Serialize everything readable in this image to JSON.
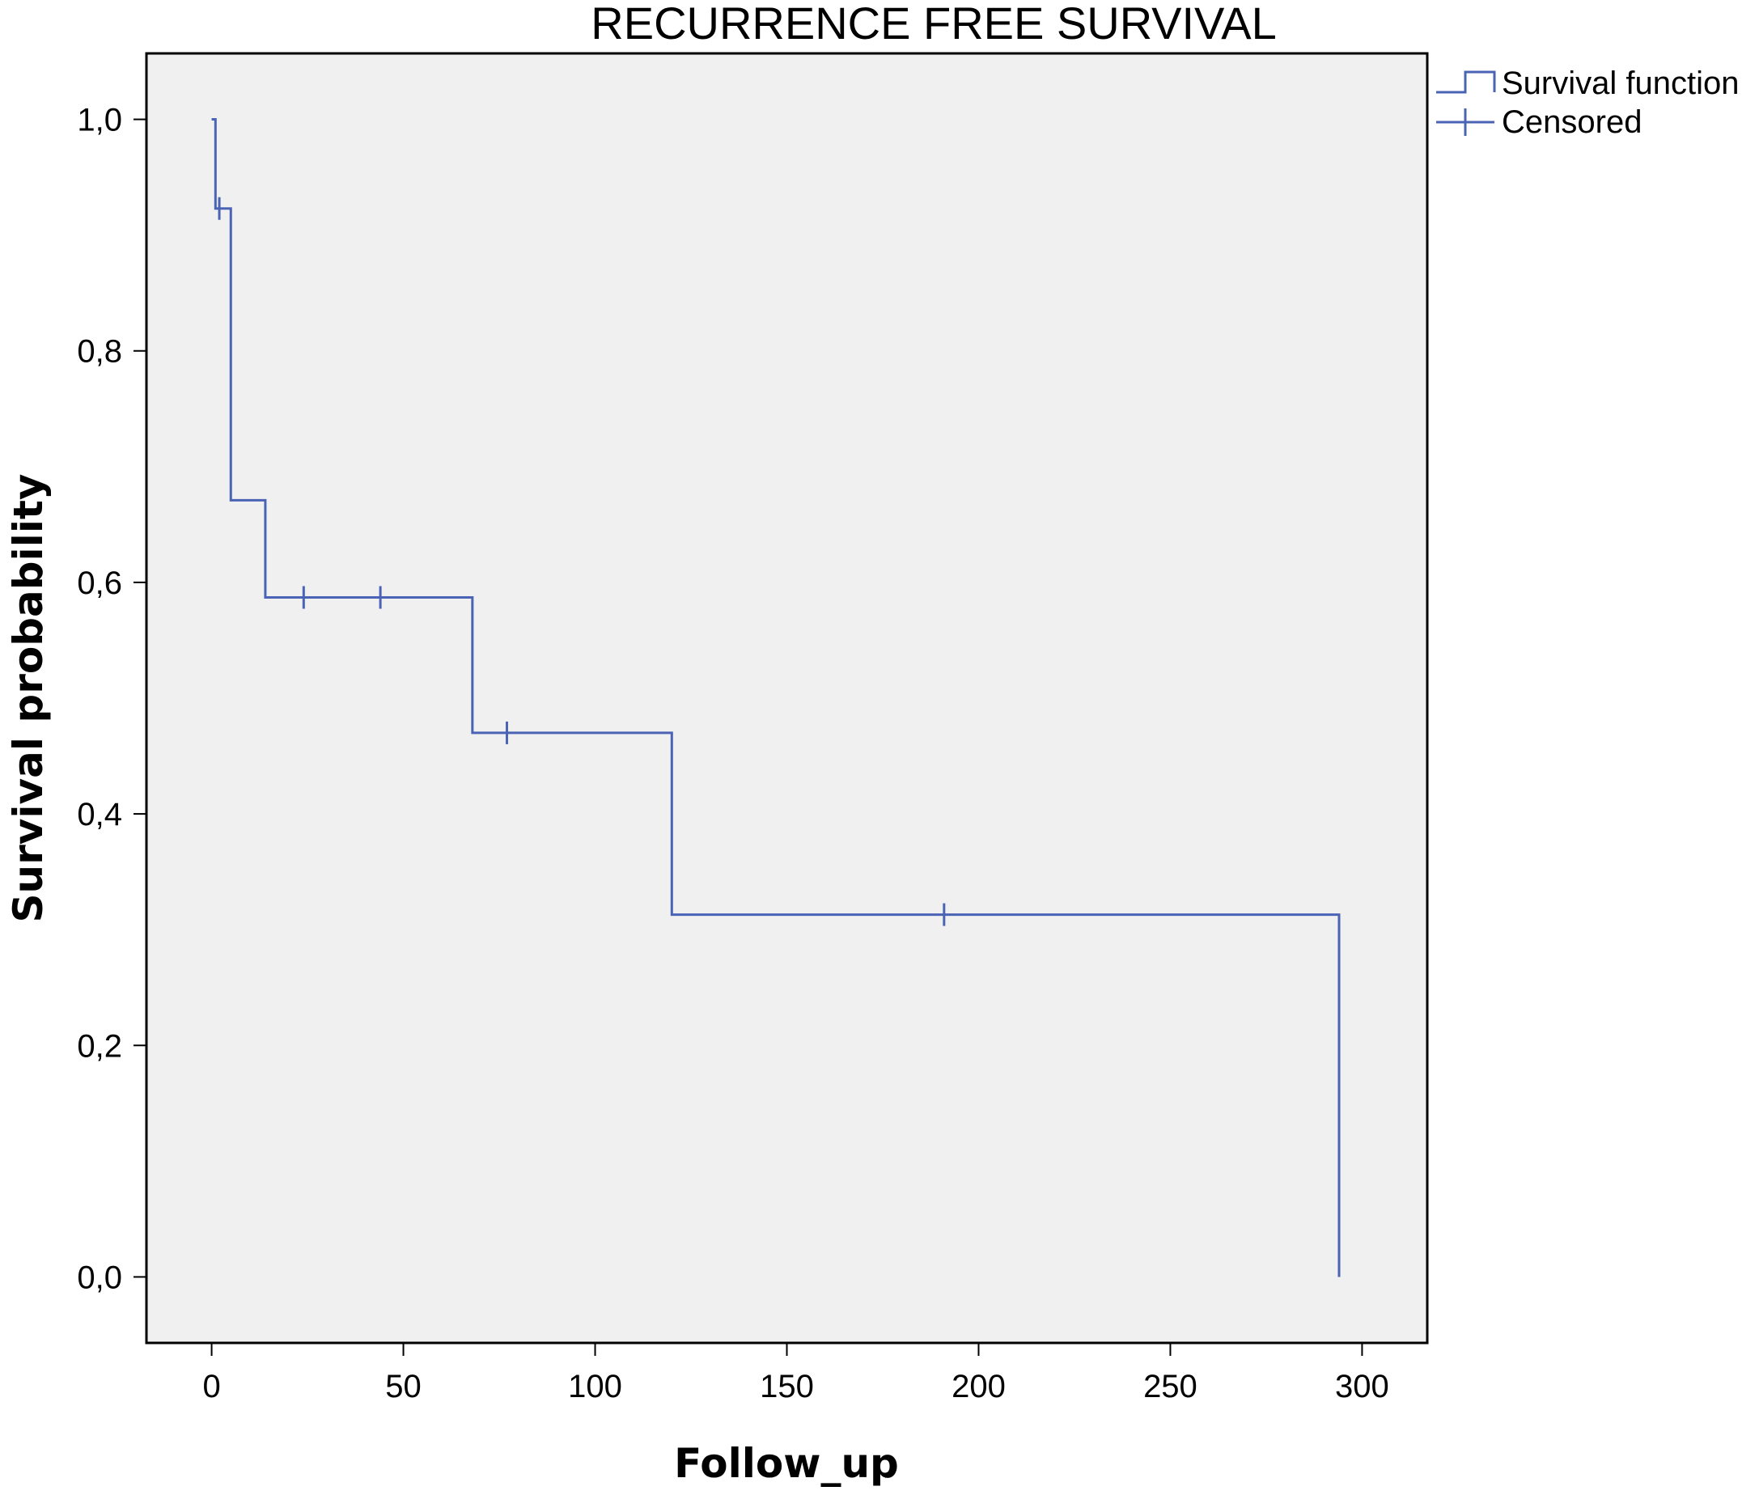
{
  "chart_data": {
    "type": "line",
    "subtype": "kaplan-meier-step",
    "title": "RECURRENCE FREE SURVIVAL",
    "xlabel": "Follow_up",
    "ylabel": "Survival probability",
    "xlim": [
      -17,
      317
    ],
    "ylim": [
      -0.057,
      1.057
    ],
    "xticks": [
      0,
      50,
      100,
      150,
      200,
      250,
      300
    ],
    "xtick_labels": [
      "0",
      "50",
      "100",
      "150",
      "200",
      "250",
      "300"
    ],
    "yticks": [
      0.0,
      0.2,
      0.4,
      0.6,
      0.8,
      1.0
    ],
    "ytick_labels": [
      "0,0",
      "0,2",
      "0,4",
      "0,6",
      "0,8",
      "1,0"
    ],
    "grid": false,
    "legend_position": "outside-top-right",
    "colors": {
      "line": "#4a63b5",
      "plot_background": "#f0f0f0",
      "frame": "#000000"
    },
    "series": [
      {
        "name": "Survival function",
        "kind": "step",
        "steps": [
          {
            "time": 0,
            "survival": 1.0
          },
          {
            "time": 1,
            "survival": 0.923
          },
          {
            "time": 5,
            "survival": 0.671
          },
          {
            "time": 14,
            "survival": 0.587
          },
          {
            "time": 68,
            "survival": 0.47
          },
          {
            "time": 120,
            "survival": 0.313
          },
          {
            "time": 294,
            "survival": 0.0
          }
        ]
      },
      {
        "name": "Censored",
        "kind": "censor-marks",
        "points": [
          {
            "time": 2,
            "survival": 0.923
          },
          {
            "time": 24,
            "survival": 0.587
          },
          {
            "time": 44,
            "survival": 0.587
          },
          {
            "time": 77,
            "survival": 0.47
          },
          {
            "time": 191,
            "survival": 0.313
          }
        ]
      }
    ]
  }
}
